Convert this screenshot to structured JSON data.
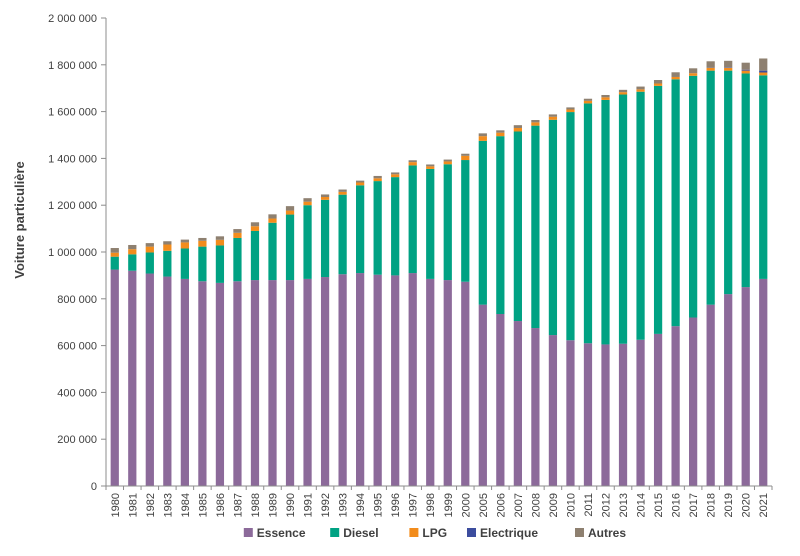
{
  "chart_data": {
    "type": "bar",
    "stacked": true,
    "title": "",
    "xlabel": "",
    "ylabel": "Voiture particulière",
    "ylim": [
      0,
      2000000
    ],
    "yticks": [
      "0",
      "200 000",
      "400 000",
      "600 000",
      "800 000",
      "1 000 000",
      "1 200 000",
      "1 400 000",
      "1 600 000",
      "1 800 000",
      "2 000 000"
    ],
    "ytick_values": [
      0,
      200000,
      400000,
      600000,
      800000,
      1000000,
      1200000,
      1400000,
      1600000,
      1800000,
      2000000
    ],
    "grid": false,
    "legend_position": "bottom",
    "categories": [
      "1980",
      "1981",
      "1982",
      "1983",
      "1984",
      "1985",
      "1986",
      "1987",
      "1988",
      "1989",
      "1990",
      "1991",
      "1992",
      "1993",
      "1994",
      "1995",
      "1996",
      "1997",
      "1998",
      "1999",
      "2000",
      "2005",
      "2006",
      "2007",
      "2008",
      "2009",
      "2010",
      "2011",
      "2012",
      "2013",
      "2014",
      "2015",
      "2016",
      "2017",
      "2018",
      "2019",
      "2020",
      "2021"
    ],
    "series": [
      {
        "name": "Essence",
        "color": "#8c6a9a",
        "values": [
          925000,
          920000,
          908000,
          895000,
          885000,
          875000,
          868000,
          875000,
          880000,
          880000,
          880000,
          885000,
          893000,
          905000,
          910000,
          903000,
          900000,
          910000,
          885000,
          880000,
          873000,
          775000,
          735000,
          705000,
          675000,
          645000,
          623000,
          610000,
          605000,
          608000,
          625000,
          650000,
          683000,
          720000,
          775000,
          820000,
          850000,
          885000
        ]
      },
      {
        "name": "Diesel",
        "color": "#00a283",
        "values": [
          55000,
          70000,
          90000,
          110000,
          130000,
          148000,
          160000,
          185000,
          210000,
          245000,
          280000,
          315000,
          330000,
          340000,
          375000,
          400000,
          420000,
          460000,
          470000,
          495000,
          520000,
          700000,
          760000,
          810000,
          865000,
          920000,
          975000,
          1025000,
          1045000,
          1065000,
          1060000,
          1060000,
          1055000,
          1033000,
          1000000,
          955000,
          913000,
          870000
        ]
      },
      {
        "name": "LPG",
        "color": "#f28c1c",
        "values": [
          17000,
          22000,
          25000,
          27000,
          26000,
          25000,
          24000,
          22000,
          20000,
          18000,
          17000,
          15000,
          12000,
          12000,
          12000,
          12000,
          12000,
          14000,
          11000,
          12000,
          18000,
          20000,
          15000,
          15000,
          14000,
          13000,
          11000,
          11000,
          11000,
          10000,
          10000,
          10000,
          10000,
          11000,
          12000,
          12000,
          12000,
          12000
        ]
      },
      {
        "name": "Electrique",
        "color": "#3c4d9e",
        "values": [
          0,
          0,
          0,
          0,
          0,
          0,
          0,
          0,
          0,
          0,
          0,
          0,
          0,
          0,
          0,
          0,
          0,
          0,
          0,
          0,
          0,
          0,
          0,
          0,
          0,
          0,
          0,
          0,
          0,
          0,
          0,
          0,
          0,
          0,
          1000,
          2000,
          4000,
          8000
        ]
      },
      {
        "name": "Autres",
        "color": "#8e8070",
        "values": [
          20000,
          18000,
          15000,
          14000,
          12000,
          12000,
          15000,
          16000,
          17000,
          18000,
          19000,
          15000,
          11000,
          10000,
          8000,
          10000,
          8000,
          8000,
          8000,
          8000,
          9000,
          12000,
          10000,
          12000,
          10000,
          10000,
          9000,
          9000,
          10000,
          10000,
          12000,
          15000,
          20000,
          21000,
          27000,
          28000,
          30000,
          52000
        ]
      }
    ]
  }
}
